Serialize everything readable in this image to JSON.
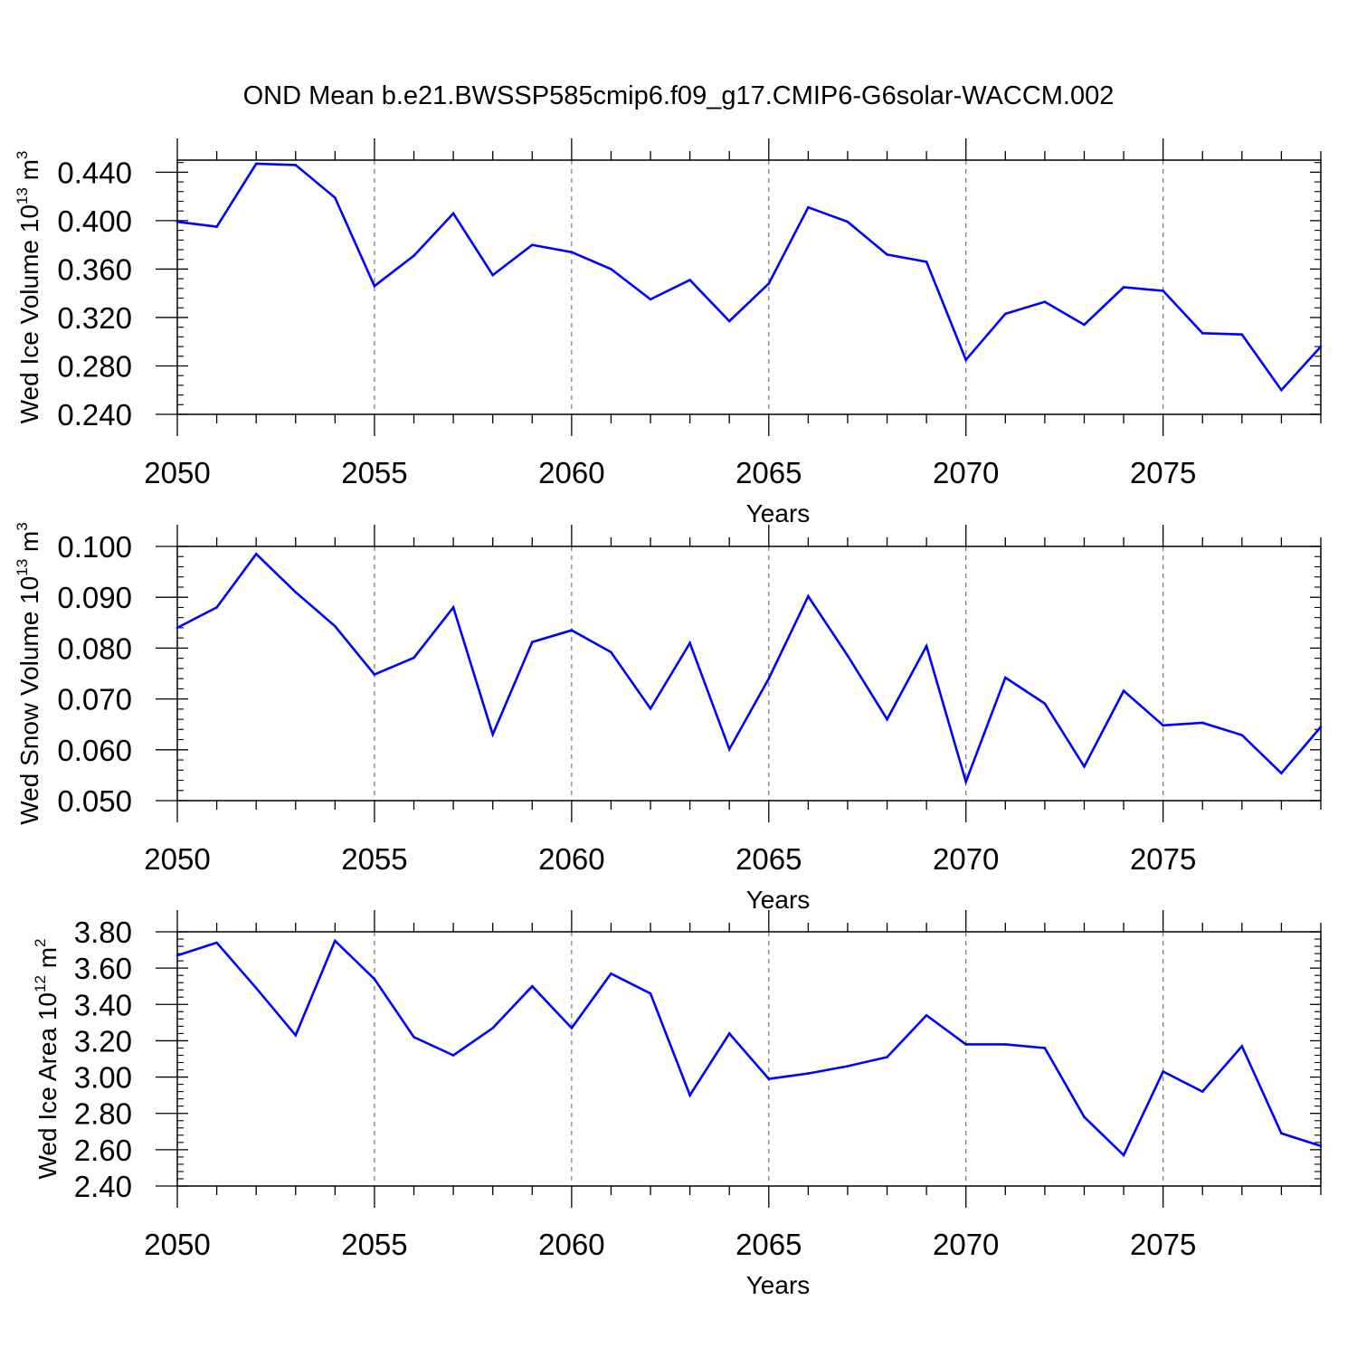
{
  "title": "OND Mean b.e21.BWSSP585cmip6.f09_g17.CMIP6-G6solar-WACCM.002",
  "chart_data": [
    {
      "type": "line",
      "xlabel": "Years",
      "ylabel": "Wed Ice Volume 10",
      "ylabel_exp": "13",
      "ylabel_unit": " m",
      "ylabel_unit_exp": "3",
      "xlim": [
        2050,
        2079
      ],
      "ylim": [
        0.24,
        0.45
      ],
      "x_ticks": [
        2050,
        2055,
        2060,
        2065,
        2070,
        2075
      ],
      "x_tick_labels": [
        "2050",
        "2055",
        "2060",
        "2065",
        "2070",
        "2075"
      ],
      "y_ticks": [
        0.24,
        0.28,
        0.32,
        0.36,
        0.4,
        0.44
      ],
      "y_tick_labels": [
        "0.240",
        "0.280",
        "0.320",
        "0.360",
        "0.400",
        "0.440"
      ],
      "grid": "dashed vertical at major x ticks",
      "series": [
        {
          "color": "#0000ff",
          "x": [
            2050,
            2051,
            2052,
            2053,
            2054,
            2055,
            2056,
            2057,
            2058,
            2059,
            2060,
            2061,
            2062,
            2063,
            2064,
            2065,
            2066,
            2067,
            2068,
            2069,
            2070,
            2071,
            2072,
            2073,
            2074,
            2075,
            2076,
            2077,
            2078,
            2079
          ],
          "y": [
            0.399,
            0.395,
            0.447,
            0.446,
            0.419,
            0.346,
            0.371,
            0.406,
            0.355,
            0.38,
            0.374,
            0.36,
            0.335,
            0.351,
            0.317,
            0.348,
            0.411,
            0.399,
            0.372,
            0.366,
            0.285,
            0.323,
            0.333,
            0.314,
            0.345,
            0.342,
            0.307,
            0.306,
            0.26,
            0.296
          ]
        }
      ]
    },
    {
      "type": "line",
      "xlabel": "Years",
      "ylabel": "Wed Snow Volume 10",
      "ylabel_exp": "13",
      "ylabel_unit": " m",
      "ylabel_unit_exp": "3",
      "xlim": [
        2050,
        2079
      ],
      "ylim": [
        0.05,
        0.1
      ],
      "x_ticks": [
        2050,
        2055,
        2060,
        2065,
        2070,
        2075
      ],
      "x_tick_labels": [
        "2050",
        "2055",
        "2060",
        "2065",
        "2070",
        "2075"
      ],
      "y_ticks": [
        0.05,
        0.06,
        0.07,
        0.08,
        0.09,
        0.1
      ],
      "y_tick_labels": [
        "0.050",
        "0.060",
        "0.070",
        "0.080",
        "0.090",
        "0.100"
      ],
      "grid": "dashed vertical at major x ticks",
      "series": [
        {
          "color": "#0000ff",
          "x": [
            2050,
            2051,
            2052,
            2053,
            2054,
            2055,
            2056,
            2057,
            2058,
            2059,
            2060,
            2061,
            2062,
            2063,
            2064,
            2065,
            2066,
            2067,
            2068,
            2069,
            2070,
            2071,
            2072,
            2073,
            2074,
            2075,
            2076,
            2077,
            2078,
            2079
          ],
          "y": [
            0.084,
            0.088,
            0.0985,
            0.091,
            0.0843,
            0.0748,
            0.0781,
            0.088,
            0.063,
            0.0812,
            0.0835,
            0.0792,
            0.0681,
            0.081,
            0.0601,
            0.074,
            0.0902,
            0.0785,
            0.066,
            0.0804,
            0.0537,
            0.0742,
            0.0691,
            0.0567,
            0.0716,
            0.0648,
            0.0653,
            0.0629,
            0.0554,
            0.0645
          ]
        }
      ]
    },
    {
      "type": "line",
      "xlabel": "Years",
      "ylabel": "Wed Ice Area 10",
      "ylabel_exp": "12",
      "ylabel_unit": " m",
      "ylabel_unit_exp": "2",
      "xlim": [
        2050,
        2079
      ],
      "ylim": [
        2.4,
        3.8
      ],
      "x_ticks": [
        2050,
        2055,
        2060,
        2065,
        2070,
        2075
      ],
      "x_tick_labels": [
        "2050",
        "2055",
        "2060",
        "2065",
        "2070",
        "2075"
      ],
      "y_ticks": [
        2.4,
        2.6,
        2.8,
        3.0,
        3.2,
        3.4,
        3.6,
        3.8
      ],
      "y_tick_labels": [
        "2.40",
        "2.60",
        "2.80",
        "3.00",
        "3.20",
        "3.40",
        "3.60",
        "3.80"
      ],
      "grid": "dashed vertical at major x ticks",
      "series": [
        {
          "color": "#0000ff",
          "x": [
            2050,
            2051,
            2052,
            2053,
            2054,
            2055,
            2056,
            2057,
            2058,
            2059,
            2060,
            2061,
            2062,
            2063,
            2064,
            2065,
            2066,
            2067,
            2068,
            2069,
            2070,
            2071,
            2072,
            2073,
            2074,
            2075,
            2076,
            2077,
            2078,
            2079
          ],
          "y": [
            3.67,
            3.74,
            3.49,
            3.23,
            3.75,
            3.54,
            3.22,
            3.12,
            3.27,
            3.5,
            3.27,
            3.57,
            3.46,
            2.9,
            3.24,
            2.99,
            3.02,
            3.06,
            3.11,
            3.34,
            3.18,
            3.18,
            3.16,
            2.78,
            2.57,
            3.03,
            2.92,
            3.17,
            2.69,
            2.62
          ]
        }
      ]
    }
  ]
}
